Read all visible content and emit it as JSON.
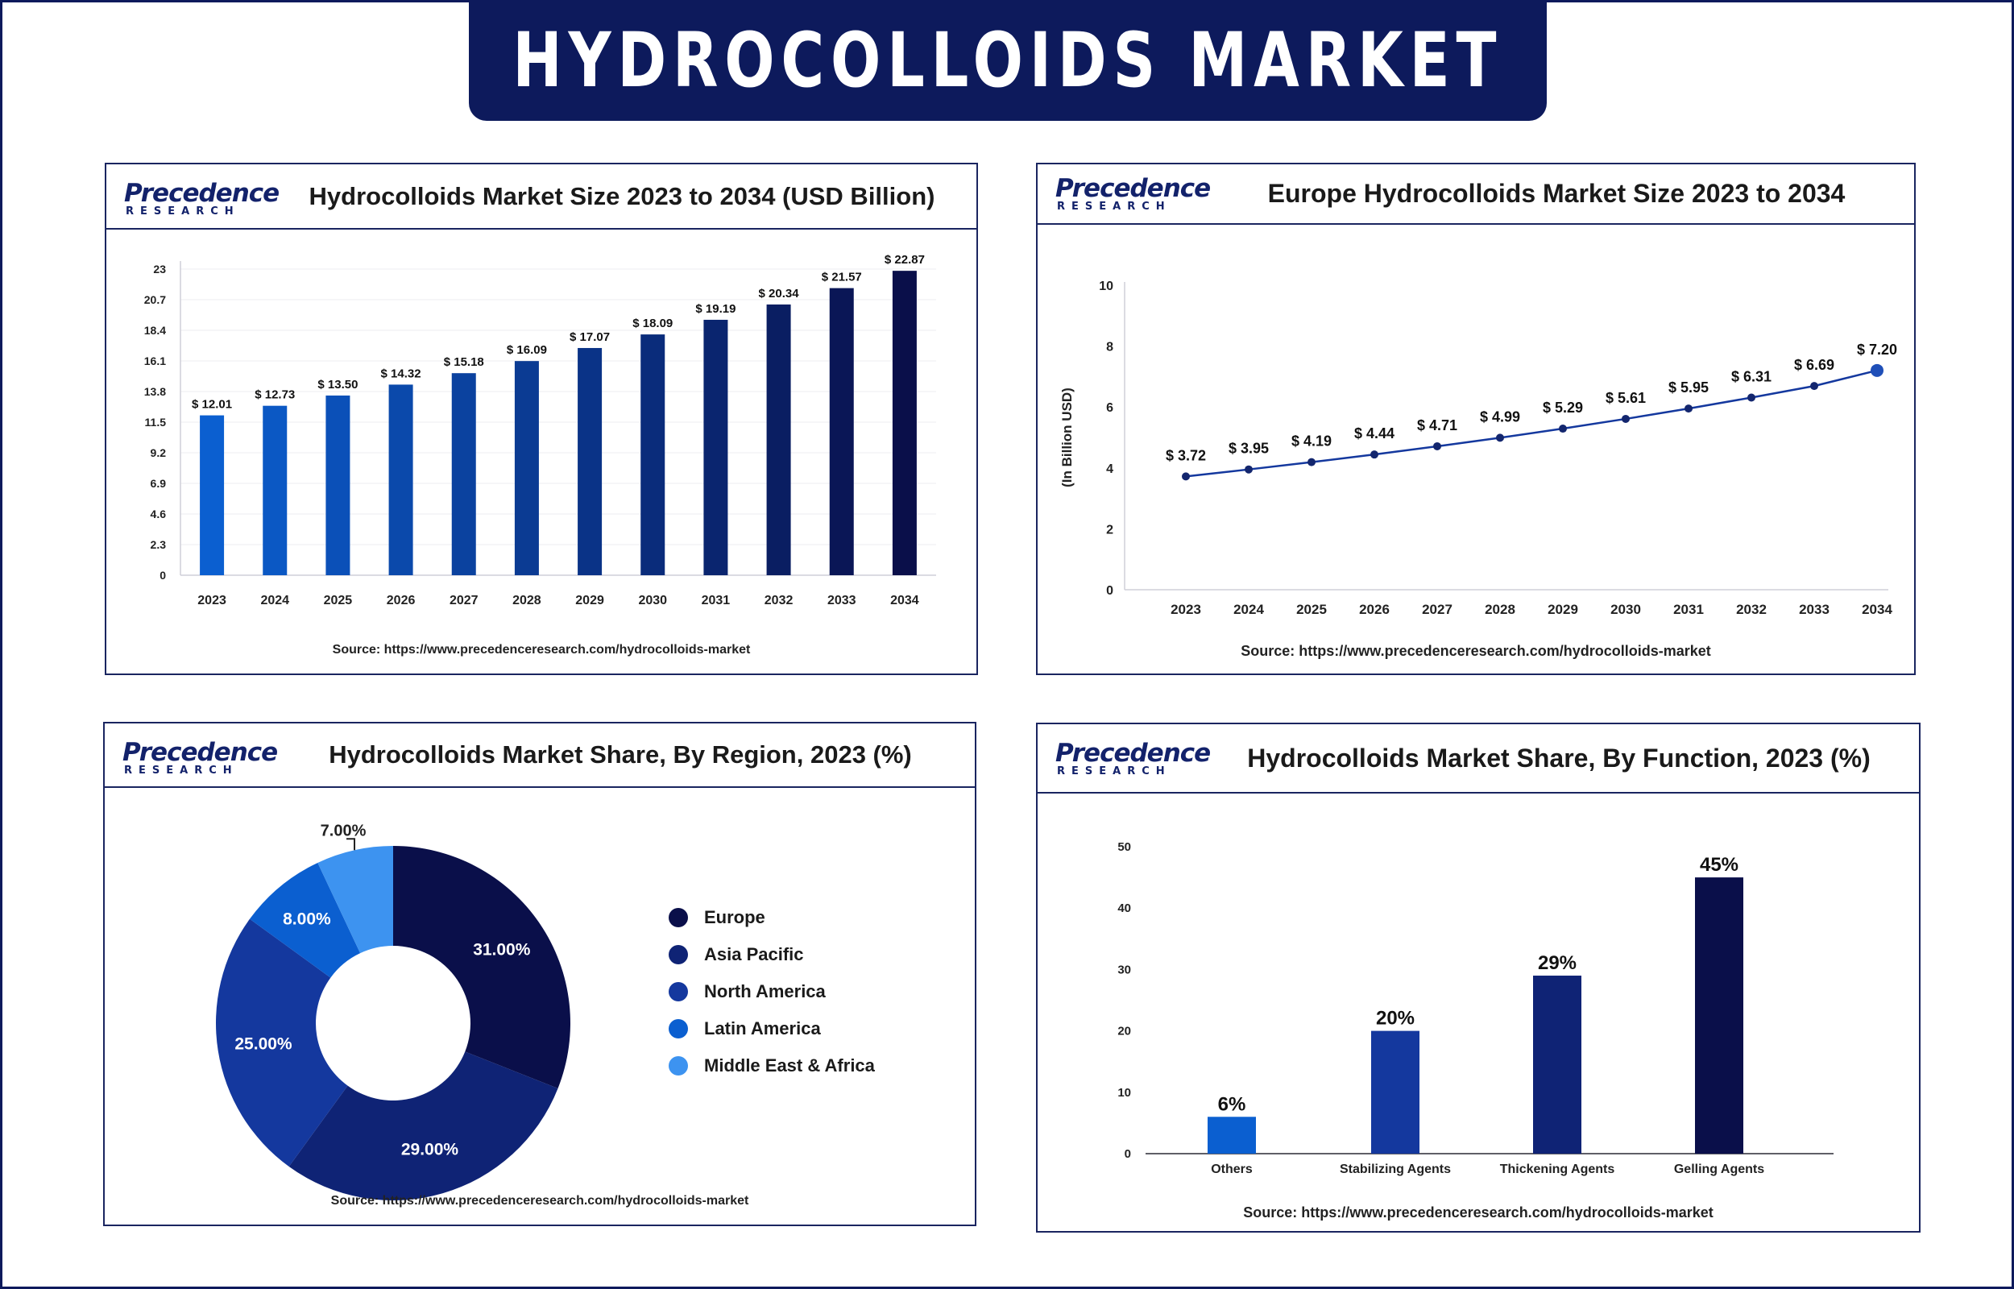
{
  "banner": {
    "title": "HYDROCOLLOIDS MARKET"
  },
  "logo": {
    "name": "Precedence",
    "sub": "RESEARCH"
  },
  "colors": {
    "navy": "#0d1a5c",
    "series": [
      "#0a0f4a",
      "#0f2375",
      "#14389e",
      "#0b5fd0",
      "#3d93f0"
    ]
  },
  "chart_data": [
    {
      "type": "bar",
      "title": "Hydrocolloids Market Size 2023 to 2034 (USD Billion)",
      "categories": [
        "2023",
        "2024",
        "2025",
        "2026",
        "2027",
        "2028",
        "2029",
        "2030",
        "2031",
        "2032",
        "2033",
        "2034"
      ],
      "values": [
        12.01,
        12.73,
        13.5,
        14.32,
        15.18,
        16.09,
        17.07,
        18.09,
        19.19,
        20.34,
        21.57,
        22.87
      ],
      "value_labels": [
        "$ 12.01",
        "$ 12.73",
        "$ 13.50",
        "$ 14.32",
        "$ 15.18",
        "$ 16.09",
        "$ 17.07",
        "$ 18.09",
        "$ 19.19",
        "$ 20.34",
        "$ 21.57",
        "$ 22.87"
      ],
      "yticks": [
        "0",
        "2.3",
        "4.6",
        "6.9",
        "9.2",
        "11.5",
        "13.8",
        "16.1",
        "18.4",
        "20.7",
        "23"
      ],
      "ylim": [
        0,
        23
      ],
      "source": "Source: https://www.precedenceresearch.com/hydrocolloids-market"
    },
    {
      "type": "line",
      "title": "Europe Hydrocolloids Market Size 2023 to 2034",
      "ylabel": "(In Billion USD)",
      "categories": [
        "2023",
        "2024",
        "2025",
        "2026",
        "2027",
        "2028",
        "2029",
        "2030",
        "2031",
        "2032",
        "2033",
        "2034"
      ],
      "values": [
        3.72,
        3.95,
        4.19,
        4.44,
        4.71,
        4.99,
        5.29,
        5.61,
        5.95,
        6.31,
        6.69,
        7.2
      ],
      "value_labels": [
        "$ 3.72",
        "$ 3.95",
        "$ 4.19",
        "$ 4.44",
        "$ 4.71",
        "$ 4.99",
        "$ 5.29",
        "$ 5.61",
        "$ 5.95",
        "$ 6.31",
        "$ 6.69",
        "$ 7.20"
      ],
      "yticks": [
        "0",
        "2",
        "4",
        "6",
        "8",
        "10"
      ],
      "ylim": [
        0,
        10
      ],
      "source": "Source: https://www.precedenceresearch.com/hydrocolloids-market"
    },
    {
      "type": "pie",
      "title": "Hydrocolloids Market Share, By Region, 2023 (%)",
      "labels": [
        "Europe",
        "Asia Pacific",
        "North America",
        "Latin America",
        "Middle East & Africa"
      ],
      "values": [
        31,
        29,
        25,
        8,
        7
      ],
      "value_labels": [
        "31.00%",
        "29.00%",
        "25.00%",
        "8.00%",
        "7.00%"
      ],
      "source": "Source: https://www.precedenceresearch.com/hydrocolloids-market"
    },
    {
      "type": "bar",
      "title": "Hydrocolloids Market Share, By Function, 2023 (%)",
      "categories": [
        "Others",
        "Stabilizing Agents",
        "Thickening Agents",
        "Gelling Agents"
      ],
      "values": [
        6,
        20,
        29,
        45
      ],
      "value_labels": [
        "6%",
        "20%",
        "29%",
        "45%"
      ],
      "yticks": [
        "0",
        "10",
        "20",
        "30",
        "40",
        "50"
      ],
      "ylim": [
        0,
        50
      ],
      "source": "Source: https://www.precedenceresearch.com/hydrocolloids-market"
    }
  ]
}
